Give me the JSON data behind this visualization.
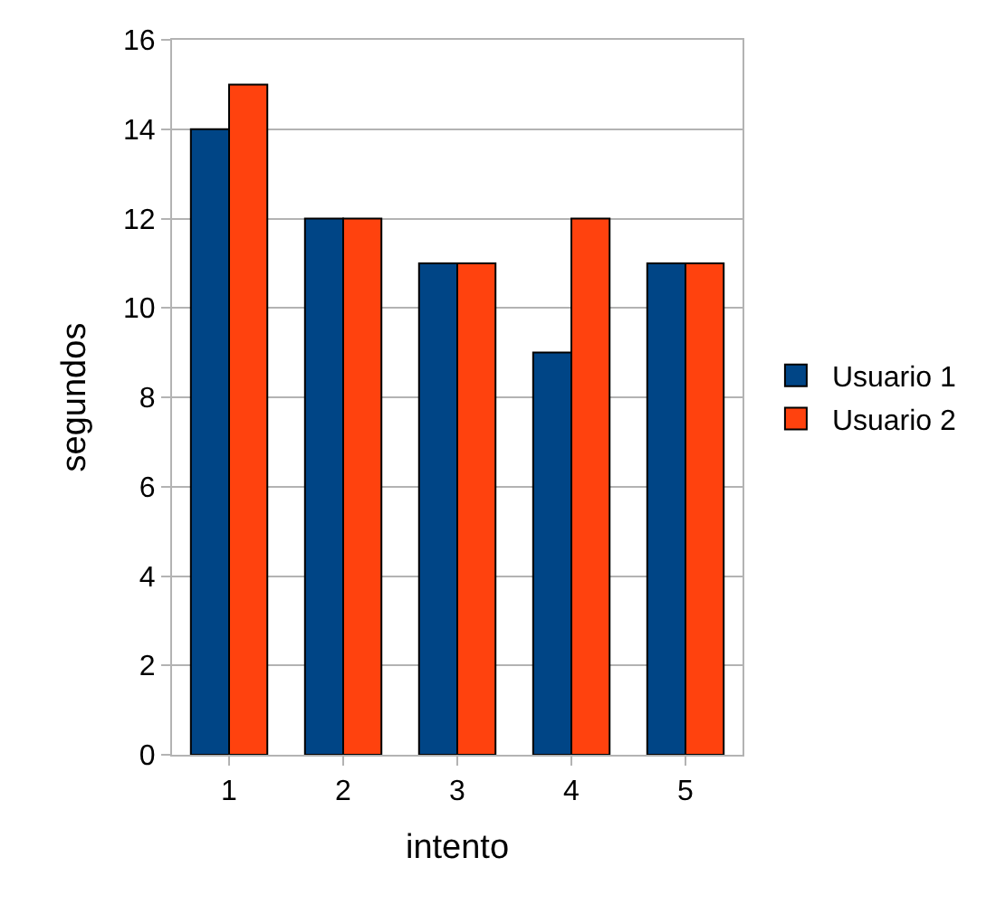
{
  "chart_data": {
    "type": "bar",
    "xlabel": "intento",
    "ylabel": "segundos",
    "categories": [
      "1",
      "2",
      "3",
      "4",
      "5"
    ],
    "series": [
      {
        "name": "Usuario 1",
        "color": "#004586",
        "values": [
          14,
          12,
          11,
          9,
          11
        ]
      },
      {
        "name": "Usuario 2",
        "color": "#ff420e",
        "values": [
          15,
          12,
          11,
          12,
          11
        ]
      }
    ],
    "ylim": [
      0,
      16
    ],
    "yticks": [
      0,
      2,
      4,
      6,
      8,
      10,
      12,
      14,
      16
    ],
    "grid": "y",
    "legend": "right"
  }
}
